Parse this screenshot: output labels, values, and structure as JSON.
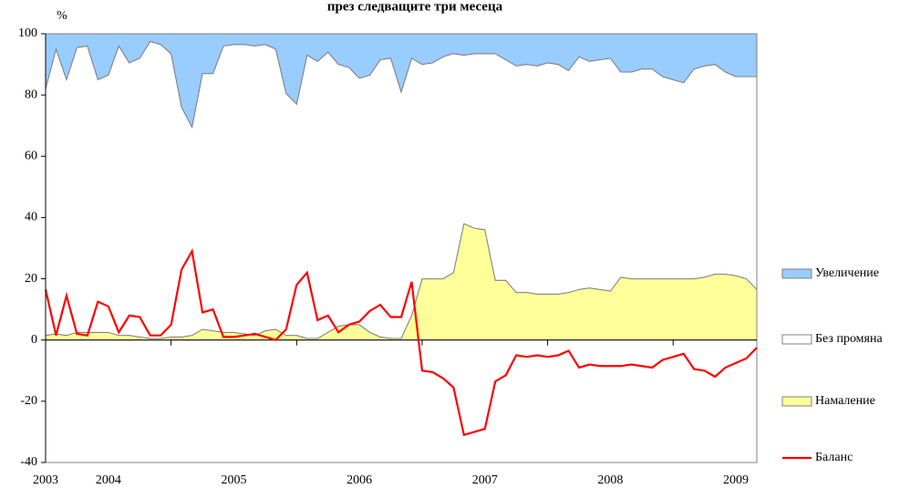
{
  "chart_data": {
    "type": "area",
    "title": "през следващите три месеца",
    "y_label": "%",
    "categories": [
      "2003",
      null,
      null,
      null,
      null,
      null,
      "2004",
      null,
      null,
      null,
      null,
      null,
      null,
      null,
      null,
      null,
      null,
      null,
      "2005",
      null,
      null,
      null,
      null,
      null,
      null,
      null,
      null,
      null,
      null,
      null,
      "2006",
      null,
      null,
      null,
      null,
      null,
      null,
      null,
      null,
      null,
      null,
      null,
      "2007",
      null,
      null,
      null,
      null,
      null,
      null,
      null,
      null,
      null,
      null,
      null,
      "2008",
      null,
      null,
      null,
      null,
      null,
      null,
      null,
      null,
      null,
      null,
      null,
      "2009",
      null,
      null
    ],
    "series": [
      {
        "name": "Увеличение",
        "color": "#99ccff",
        "values": [
          18,
          5,
          15,
          4.5,
          4,
          15,
          13.5,
          4,
          9.5,
          8,
          2.5,
          3.5,
          6.5,
          24,
          30.5,
          13,
          13,
          4,
          3.5,
          3.5,
          4,
          3.5,
          5,
          19.5,
          23,
          7,
          9,
          6,
          10,
          11,
          14.5,
          13.5,
          8.5,
          8,
          19,
          8,
          10,
          9.5,
          7.5,
          6.5,
          7,
          6.5,
          6.5,
          6.5,
          8.5,
          10.5,
          10,
          10.5,
          9.5,
          10,
          12,
          7.5,
          9,
          8.5,
          8,
          12.5,
          12.5,
          11.5,
          11.5,
          14,
          15,
          16,
          11.5,
          10.5,
          10,
          12.5,
          14,
          14,
          14
        ]
      },
      {
        "name": "Без промяна",
        "color": "#ffffff",
        "values": [
          80.5,
          93,
          83.5,
          93,
          93.5,
          82.5,
          84,
          94.5,
          89,
          91,
          97,
          96,
          92.5,
          75,
          68,
          83.5,
          84,
          93.5,
          94,
          94.5,
          94.5,
          93.5,
          91.5,
          79,
          75.5,
          92.5,
          90.5,
          91.5,
          85.5,
          84,
          80.5,
          84,
          90.5,
          91.5,
          80.5,
          84,
          70,
          70.5,
          72.5,
          71.5,
          55,
          57,
          57.5,
          74,
          72,
          74,
          74.5,
          74.5,
          75.5,
          75,
          72.5,
          76,
          74,
          75,
          76,
          67,
          67.5,
          68.5,
          68.5,
          66,
          65,
          64,
          68.5,
          69,
          68.5,
          66,
          65,
          66,
          69.5
        ]
      },
      {
        "name": "Намаление",
        "color": "#ffff99",
        "values": [
          1.5,
          2,
          1.5,
          2.5,
          2.5,
          2.5,
          2.5,
          1.5,
          1.5,
          1,
          0.5,
          0.5,
          1,
          1,
          1.5,
          3.5,
          3,
          2.5,
          2.5,
          2,
          1.5,
          3,
          3.5,
          1.5,
          1.5,
          0.5,
          0.5,
          2.5,
          4.5,
          5,
          5,
          2.5,
          1,
          0.5,
          0.5,
          8,
          20,
          20,
          20,
          22,
          38,
          36.5,
          36,
          19.5,
          19.5,
          15.5,
          15.5,
          15,
          15,
          15,
          15.5,
          16.5,
          17,
          16.5,
          16,
          20.5,
          20,
          20,
          20,
          20,
          20,
          20,
          20,
          20.5,
          21.5,
          21.5,
          21,
          20,
          16.5
        ]
      },
      {
        "name": "Баланс",
        "color": "#ff0000",
        "type": "line",
        "values": [
          16.5,
          1.5,
          14.5,
          2,
          1.5,
          12.5,
          11,
          2.5,
          8,
          7.5,
          1.5,
          1.5,
          5,
          23,
          29,
          9,
          10,
          1,
          1,
          1.5,
          2,
          1,
          0,
          3.5,
          18,
          22,
          6.5,
          8,
          2.5,
          5,
          6,
          9.5,
          11.5,
          7.5,
          7.5,
          19,
          -10,
          -10.5,
          -12.5,
          -15.5,
          -31,
          -30,
          -29,
          -13.5,
          -11.5,
          -5,
          -5.5,
          -5,
          -5.5,
          -5,
          -3.5,
          -9,
          -8,
          -8.5,
          -8.5,
          -8.5,
          -8,
          -8.5,
          -9,
          -6.5,
          -5.5,
          -4.5,
          -9.5,
          -10,
          -12,
          -9,
          -7.5,
          -6,
          -2.5
        ]
      }
    ],
    "ylim": [
      -40,
      100
    ],
    "yticks": [
      -40,
      -20,
      0,
      20,
      40,
      60,
      80,
      100
    ],
    "legend": "right"
  }
}
